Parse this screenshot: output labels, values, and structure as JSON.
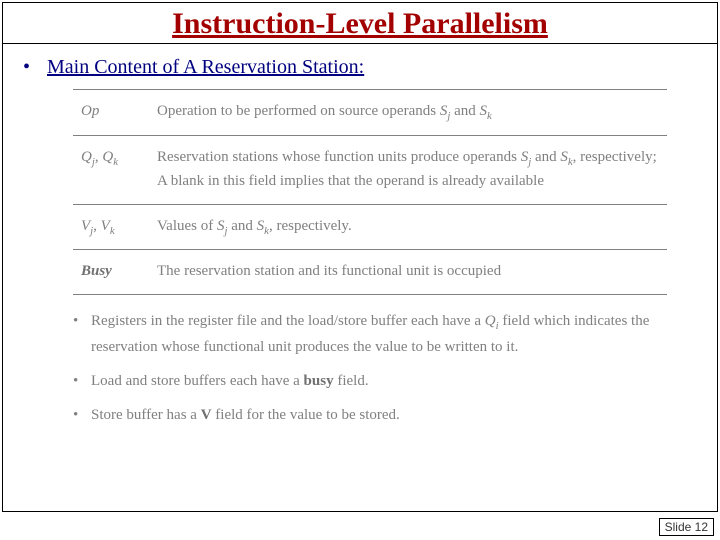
{
  "title": "Instruction-Level Parallelism",
  "subheading": "Main Content of A Reservation Station:",
  "rows": [
    {
      "term_html": "<span class='mi'>Op</span>",
      "desc_html": "Operation to be performed on source operands <span class='mi'>S<span class='sub'>j</span></span> and <span class='mi'>S<span class='sub'>k</span></span>"
    },
    {
      "term_html": "<span class='mi'>Q<span class='sub'>j</span></span>, <span class='mi'>Q<span class='sub'>k</span></span>",
      "desc_html": "Reservation stations whose function units produce operands <span class='mi'>S<span class='sub'>j</span></span> and <span class='mi'>S<span class='sub'>k</span></span>, respectively; A blank in this field implies that the operand is already available"
    },
    {
      "term_html": "<span class='mi'>V<span class='sub'>j</span></span>, <span class='mi'>V<span class='sub'>k</span></span>",
      "desc_html": "Values of <span class='mi'>S<span class='sub'>j</span></span> and <span class='mi'>S<span class='sub'>k</span></span>, respectively."
    },
    {
      "term_html": "<span class='bold'>Busy</span>",
      "desc_html": "The reservation station and its functional unit is occupied"
    }
  ],
  "notes": [
    "Registers in the register file and the load/store buffer each have a <span class='mi'>Q<span class='sub'>i</span></span> field which indicates the reservation whose functional unit produces the value to be written to it.",
    "Load and store buffers each have a <span class='bold'>busy</span> field.",
    "Store buffer has a <span class='bold'>V</span> field for the value to be stored."
  ],
  "slide_label": "Slide 12",
  "colors": {
    "title": "#a30000",
    "heading": "#000080",
    "body_gray": "#808080",
    "border": "#000000"
  }
}
